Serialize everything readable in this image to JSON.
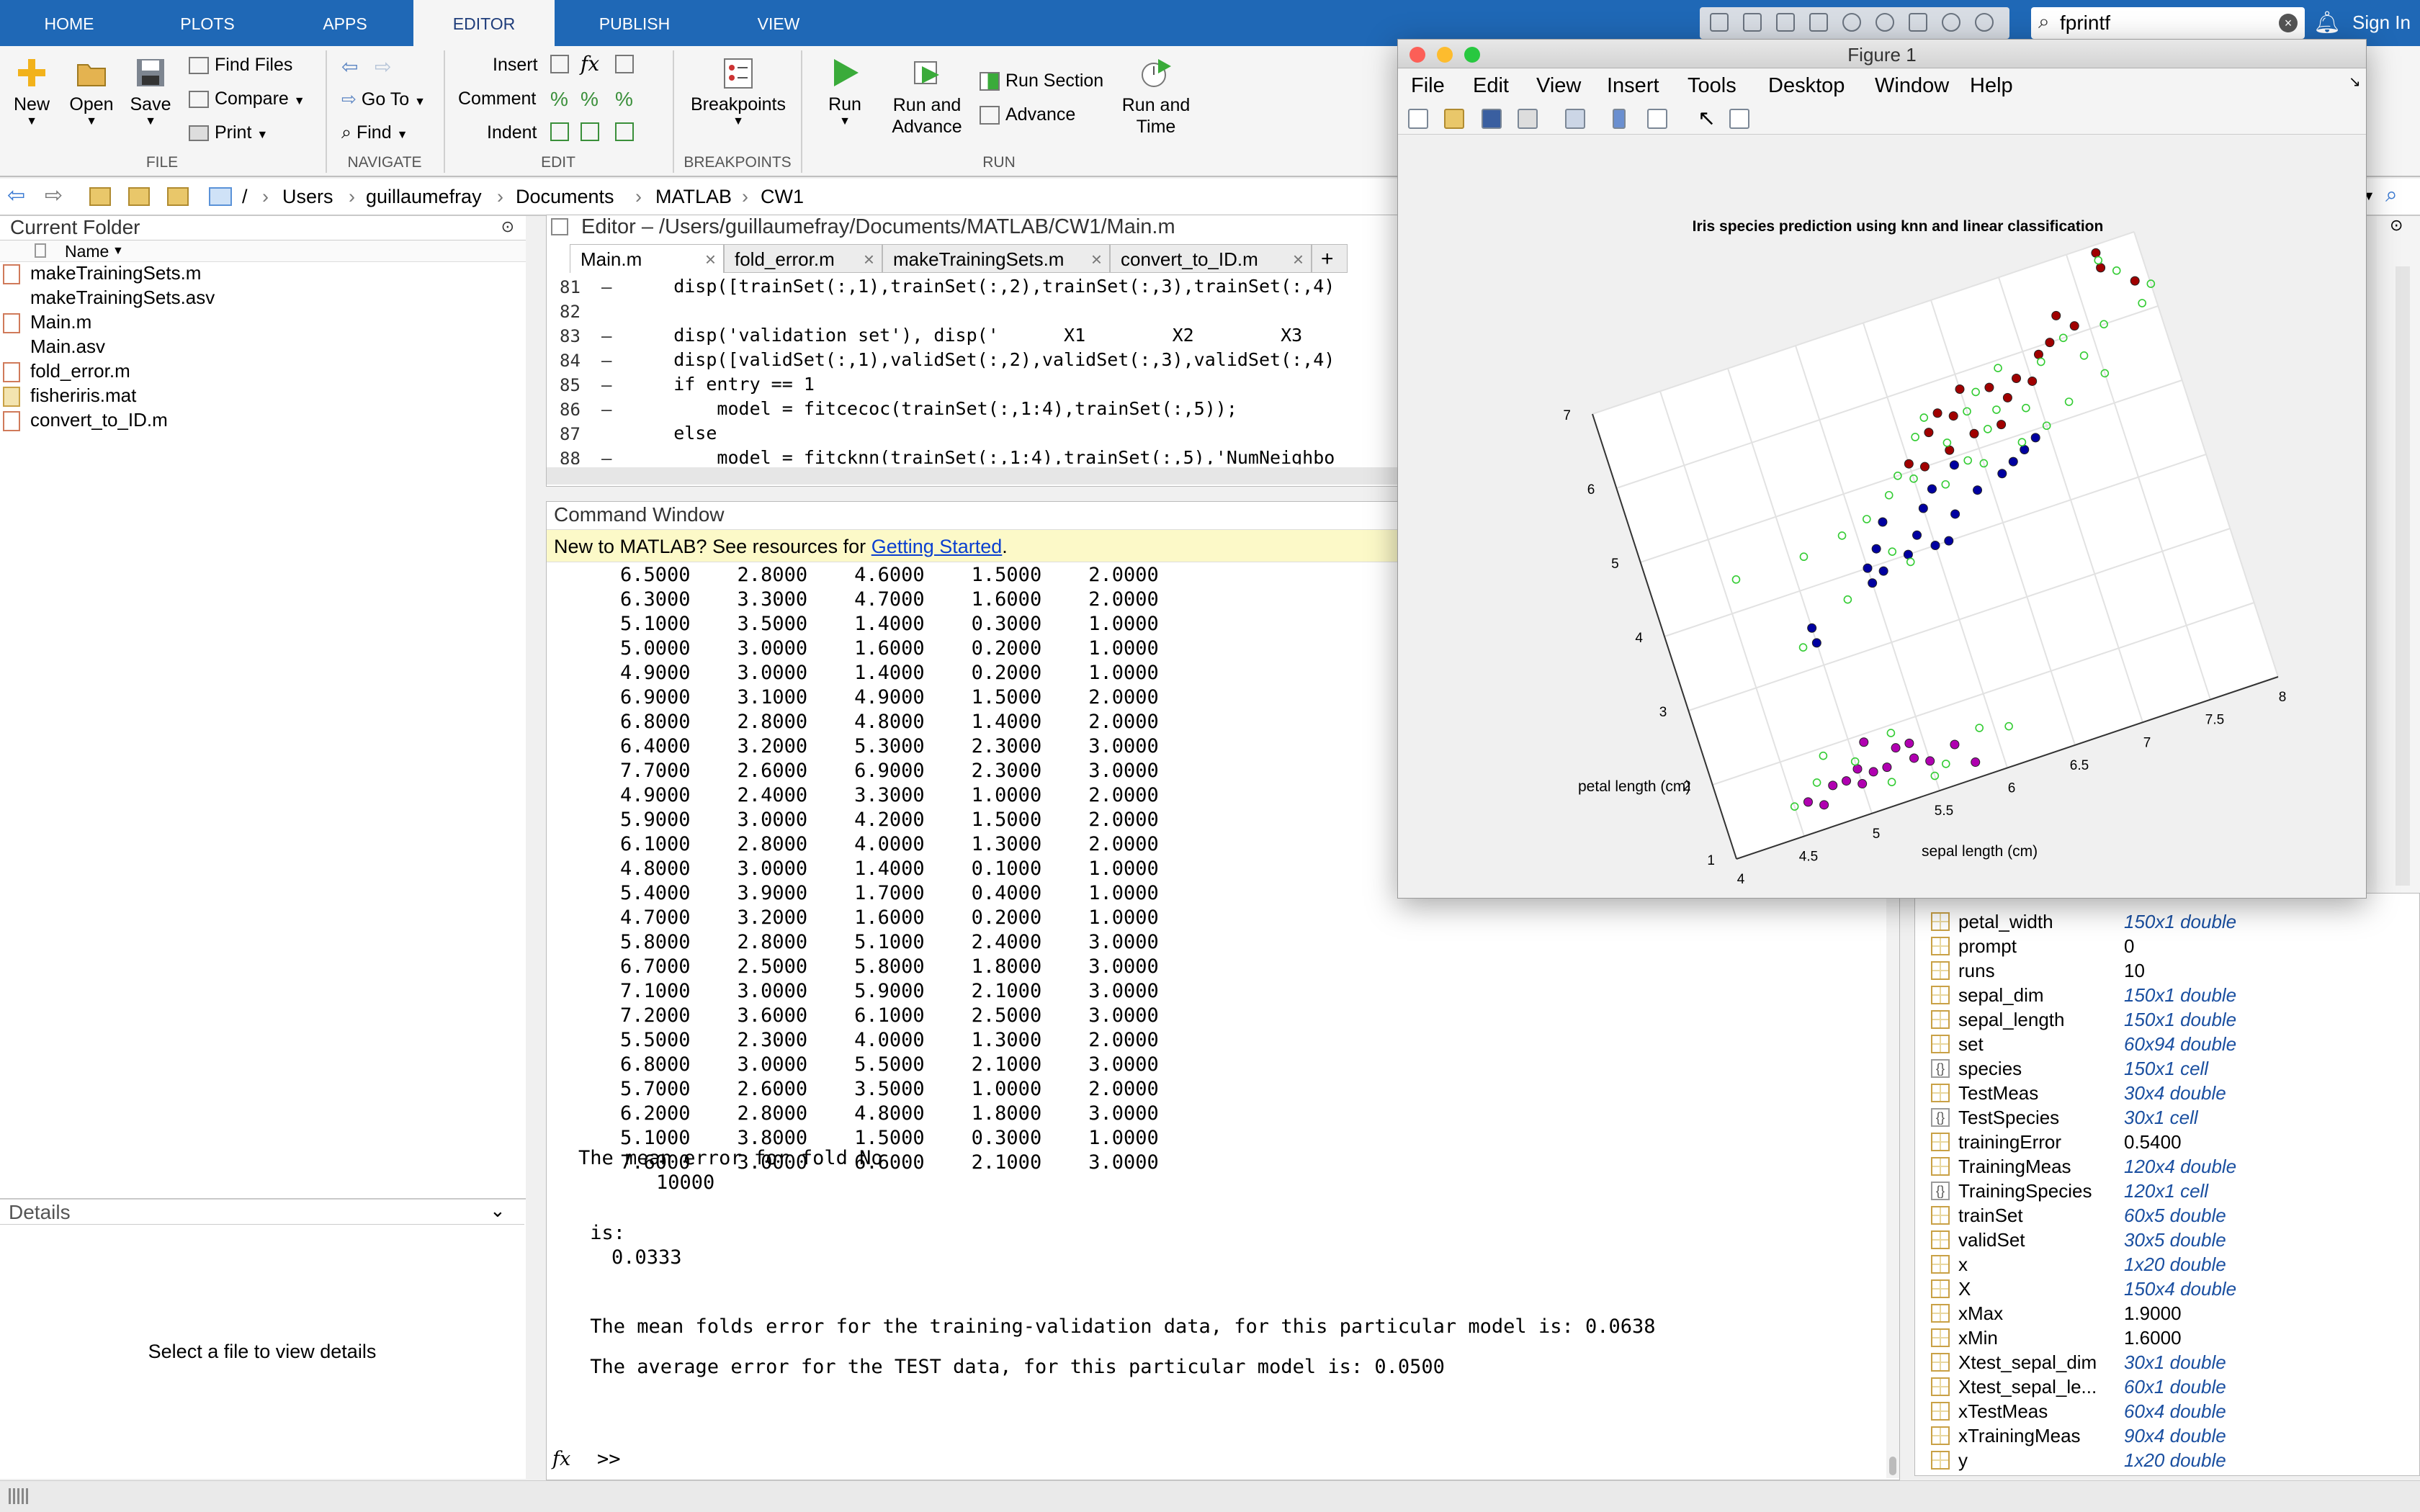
{
  "ribbon_tabs": [
    "HOME",
    "PLOTS",
    "APPS",
    "EDITOR",
    "PUBLISH",
    "VIEW"
  ],
  "active_tab": "EDITOR",
  "search": {
    "value": "fprintf"
  },
  "signin": "Sign In",
  "ribbon": {
    "file": {
      "new": "New",
      "open": "Open",
      "save": "Save",
      "find_files": "Find Files",
      "compare": "Compare",
      "print": "Print",
      "section": "FILE"
    },
    "navigate": {
      "go_to": "Go To",
      "find": "Find",
      "section": "NAVIGATE"
    },
    "edit": {
      "insert": "Insert",
      "comment": "Comment",
      "indent": "Indent",
      "section": "EDIT",
      "fx": "fx"
    },
    "breakpoints": {
      "label": "Breakpoints",
      "section": "BREAKPOINTS"
    },
    "run": {
      "run": "Run",
      "run_advance_1": "Run and",
      "run_advance_2": "Advance",
      "run_section": "Run Section",
      "advance": "Advance",
      "run_time_1": "Run and",
      "run_time_2": "Time",
      "section": "RUN"
    }
  },
  "path": {
    "root": "/",
    "parts": [
      "Users",
      "guillaumefray",
      "Documents",
      "MATLAB",
      "CW1"
    ]
  },
  "current_folder": {
    "title": "Current Folder",
    "col_name": "Name",
    "files": [
      {
        "name": "makeTrainingSets.m",
        "type": "m"
      },
      {
        "name": "makeTrainingSets.asv",
        "type": "asv"
      },
      {
        "name": "Main.m",
        "type": "m"
      },
      {
        "name": "Main.asv",
        "type": "asv"
      },
      {
        "name": "fold_error.m",
        "type": "m"
      },
      {
        "name": "fisheriris.mat",
        "type": "mat"
      },
      {
        "name": "convert_to_ID.m",
        "type": "m"
      }
    ]
  },
  "details": {
    "title": "Details",
    "message": "Select a file to view details"
  },
  "editor": {
    "title": "Editor – /Users/guillaumefray/Documents/MATLAB/CW1/Main.m",
    "tabs": [
      "Main.m",
      "fold_error.m",
      "makeTrainingSets.m",
      "convert_to_ID.m"
    ],
    "lines": [
      {
        "n": "81",
        "m": "–",
        "code": "    disp([trainSet(:,1),trainSet(:,2),trainSet(:,3),trainSet(:,4)"
      },
      {
        "n": "82",
        "m": "",
        "code": ""
      },
      {
        "n": "83",
        "m": "–",
        "code": "    disp('validation set'), disp('      X1        X2        X3"
      },
      {
        "n": "84",
        "m": "–",
        "code": "    disp([validSet(:,1),validSet(:,2),validSet(:,3),validSet(:,4)"
      },
      {
        "n": "85",
        "m": "–",
        "code": "    if entry == 1"
      },
      {
        "n": "86",
        "m": "–",
        "code": "        model = fitcecoc(trainSet(:,1:4),trainSet(:,5));"
      },
      {
        "n": "87",
        "m": "",
        "code": "    else"
      },
      {
        "n": "88",
        "m": "–",
        "code": "        model = fitcknn(trainSet(:,1:4),trainSet(:,5),'NumNeighbo"
      }
    ]
  },
  "command_window": {
    "title": "Command Window",
    "banner_text": "New to MATLAB? See resources for ",
    "banner_link": "Getting Started",
    "banner_end": ".",
    "rows": [
      "6.5000    2.8000    4.6000    1.5000    2.0000",
      "6.3000    3.3000    4.7000    1.6000    2.0000",
      "5.1000    3.5000    1.4000    0.3000    1.0000",
      "5.0000    3.0000    1.6000    0.2000    1.0000",
      "4.9000    3.0000    1.4000    0.2000    1.0000",
      "6.9000    3.1000    4.9000    1.5000    2.0000",
      "6.8000    2.8000    4.8000    1.4000    2.0000",
      "6.4000    3.2000    5.3000    2.3000    3.0000",
      "7.7000    2.6000    6.9000    2.3000    3.0000",
      "4.9000    2.4000    3.3000    1.0000    2.0000",
      "5.9000    3.0000    4.2000    1.5000    2.0000",
      "6.1000    2.8000    4.0000    1.3000    2.0000",
      "4.8000    3.0000    1.4000    0.1000    1.0000",
      "5.4000    3.9000    1.7000    0.4000    1.0000",
      "4.7000    3.2000    1.6000    0.2000    1.0000",
      "5.8000    2.8000    5.1000    2.4000    3.0000",
      "6.7000    2.5000    5.8000    1.8000    3.0000",
      "7.1000    3.0000    5.9000    2.1000    3.0000",
      "7.2000    3.6000    6.1000    2.5000    3.0000",
      "5.5000    2.3000    4.0000    1.3000    2.0000",
      "6.8000    3.0000    5.5000    2.1000    3.0000",
      "5.7000    2.6000    3.5000    1.0000    2.0000",
      "6.2000    2.8000    4.8000    1.8000    3.0000",
      "5.1000    3.8000    1.5000    0.3000    1.0000",
      "7.6000    3.0000    6.6000    2.1000    3.0000"
    ],
    "fold_line": "The mean error for fold No",
    "fold_no": "10000",
    "is_label": " is:",
    "is_value": "0.0333",
    "mean_folds": " The mean folds error for the training-validation data, for this particular model is: 0.0638",
    "avg_test": " The average error for the TEST data, for this particular model is: 0.0500",
    "prompt": ">>",
    "fx": "fx"
  },
  "workspace": {
    "rows": [
      {
        "name": "petal_width",
        "value": "150x1 double",
        "kind": "grid"
      },
      {
        "name": "prompt",
        "value": "0",
        "kind": "grid"
      },
      {
        "name": "runs",
        "value": "10",
        "kind": "grid"
      },
      {
        "name": "sepal_dim",
        "value": "150x1 double",
        "kind": "grid"
      },
      {
        "name": "sepal_length",
        "value": "150x1 double",
        "kind": "grid"
      },
      {
        "name": "set",
        "value": "60x94 double",
        "kind": "grid"
      },
      {
        "name": "species",
        "value": "150x1 cell",
        "kind": "cell"
      },
      {
        "name": "TestMeas",
        "value": "30x4 double",
        "kind": "grid"
      },
      {
        "name": "TestSpecies",
        "value": "30x1 cell",
        "kind": "cell"
      },
      {
        "name": "trainingError",
        "value": "0.5400",
        "kind": "grid"
      },
      {
        "name": "TrainingMeas",
        "value": "120x4 double",
        "kind": "grid"
      },
      {
        "name": "TrainingSpecies",
        "value": "120x1 cell",
        "kind": "cell"
      },
      {
        "name": "trainSet",
        "value": "60x5 double",
        "kind": "grid"
      },
      {
        "name": "validSet",
        "value": "30x5 double",
        "kind": "grid"
      },
      {
        "name": "x",
        "value": "1x20 double",
        "kind": "grid"
      },
      {
        "name": "X",
        "value": "150x4 double",
        "kind": "grid"
      },
      {
        "name": "xMax",
        "value": "1.9000",
        "kind": "grid"
      },
      {
        "name": "xMin",
        "value": "1.6000",
        "kind": "grid"
      },
      {
        "name": "Xtest_sepal_dim",
        "value": "30x1 double",
        "kind": "grid"
      },
      {
        "name": "Xtest_sepal_le...",
        "value": "60x1 double",
        "kind": "grid"
      },
      {
        "name": "xTestMeas",
        "value": "60x4 double",
        "kind": "grid"
      },
      {
        "name": "xTrainingMeas",
        "value": "90x4 double",
        "kind": "grid"
      },
      {
        "name": "y",
        "value": "1x20 double",
        "kind": "grid"
      }
    ]
  },
  "figure": {
    "window_title": "Figure 1",
    "menu": [
      "File",
      "Edit",
      "View",
      "Insert",
      "Tools",
      "Desktop",
      "Window",
      "Help"
    ],
    "colors": {
      "setosa": "#b000b0",
      "versicolor": "#0000a0",
      "virginica": "#a00000",
      "prediction": "#33cc33"
    }
  },
  "chart_data": {
    "type": "scatter",
    "title": "Iris species prediction using knn and linear classification",
    "xlabel": "sepal length (cm)",
    "ylabel": "petal length (cm)",
    "xlim": [
      4,
      8
    ],
    "ylim": [
      1,
      7
    ],
    "x_ticks": [
      "4",
      "4.5",
      "5",
      "5.5",
      "6",
      "6.5",
      "7",
      "7.5",
      "8"
    ],
    "y_ticks": [
      "1",
      "2",
      "3",
      "4",
      "5",
      "6",
      "7"
    ],
    "grid": true,
    "series": [
      {
        "color": "#b000b0",
        "marker": "filled-circle",
        "points": [
          [
            4.6,
            1.4
          ],
          [
            4.8,
            1.5
          ],
          [
            5.0,
            1.6
          ],
          [
            5.1,
            1.5
          ],
          [
            5.3,
            1.7
          ],
          [
            5.4,
            1.5
          ],
          [
            5.5,
            1.4
          ],
          [
            5.0,
            1.4
          ],
          [
            5.4,
            1.7
          ],
          [
            4.9,
            1.5
          ],
          [
            5.2,
            1.5
          ],
          [
            5.7,
            1.5
          ],
          [
            5.8,
            1.2
          ],
          [
            4.7,
            1.3
          ],
          [
            5.1,
            1.9
          ]
        ]
      },
      {
        "color": "#0000a0",
        "marker": "filled-circle",
        "points": [
          [
            5.0,
            3.5
          ],
          [
            5.0,
            3.3
          ],
          [
            5.5,
            4.0
          ],
          [
            5.6,
            4.2
          ],
          [
            5.7,
            4.5
          ],
          [
            5.9,
            4.2
          ],
          [
            6.0,
            4.5
          ],
          [
            6.1,
            4.7
          ],
          [
            6.2,
            4.3
          ],
          [
            6.4,
            4.5
          ],
          [
            6.6,
            4.6
          ],
          [
            6.7,
            4.7
          ],
          [
            5.8,
            4.0
          ],
          [
            5.6,
            3.9
          ],
          [
            6.1,
            4.0
          ],
          [
            6.3,
            4.9
          ],
          [
            6.8,
            4.8
          ],
          [
            5.5,
            3.8
          ],
          [
            6.0,
            4.0
          ],
          [
            6.9,
            4.9
          ]
        ]
      },
      {
        "color": "#a00000",
        "marker": "filled-circle",
        "points": [
          [
            6.3,
            5.1
          ],
          [
            6.5,
            5.2
          ],
          [
            6.7,
            5.7
          ],
          [
            6.9,
            5.7
          ],
          [
            7.2,
            6.0
          ],
          [
            7.7,
            6.7
          ],
          [
            7.9,
            6.4
          ],
          [
            6.8,
            5.5
          ],
          [
            7.1,
            5.9
          ],
          [
            7.4,
            6.1
          ],
          [
            6.4,
            5.5
          ],
          [
            6.2,
            5.4
          ],
          [
            6.5,
            5.8
          ],
          [
            7.7,
            6.9
          ],
          [
            7.3,
            6.3
          ],
          [
            6.1,
            5.0
          ],
          [
            6.0,
            5.1
          ],
          [
            6.3,
            5.6
          ],
          [
            6.7,
            5.2
          ],
          [
            7.0,
            5.6
          ]
        ]
      },
      {
        "color": "#33cc33",
        "marker": "open-circle",
        "points": [
          [
            4.5,
            1.4
          ],
          [
            4.7,
            1.6
          ],
          [
            5.0,
            1.7
          ],
          [
            5.3,
            1.9
          ],
          [
            5.6,
            1.3
          ],
          [
            5.9,
            1.6
          ],
          [
            6.1,
            1.5
          ],
          [
            4.8,
            1.9
          ],
          [
            5.5,
            1.2
          ],
          [
            5.2,
            1.3
          ],
          [
            4.9,
            3.3
          ],
          [
            5.3,
            3.7
          ],
          [
            5.8,
            3.9
          ],
          [
            5.1,
            4.4
          ],
          [
            4.6,
            4.4
          ],
          [
            5.8,
            4.8
          ],
          [
            6.0,
            4.9
          ],
          [
            6.2,
            4.7
          ],
          [
            6.5,
            4.8
          ],
          [
            6.8,
            4.9
          ],
          [
            5.7,
            4.1
          ],
          [
            6.3,
            5.2
          ],
          [
            6.6,
            5.2
          ],
          [
            6.9,
            5.3
          ],
          [
            7.0,
            5.0
          ],
          [
            7.2,
            5.2
          ],
          [
            7.5,
            5.4
          ],
          [
            6.4,
            4.9
          ],
          [
            6.2,
            5.6
          ],
          [
            6.8,
            5.9
          ],
          [
            7.3,
            6.0
          ],
          [
            7.6,
            6.0
          ],
          [
            7.9,
            6.1
          ],
          [
            8.0,
            6.3
          ],
          [
            7.1,
            5.8
          ],
          [
            6.1,
            5.4
          ],
          [
            5.6,
            4.6
          ],
          [
            5.4,
            4.5
          ],
          [
            6.5,
            5.5
          ],
          [
            7.4,
            5.7
          ],
          [
            6.7,
            5.4
          ],
          [
            5.9,
            5.0
          ],
          [
            6.6,
            5.7
          ],
          [
            7.8,
            6.6
          ],
          [
            7.7,
            6.8
          ]
        ]
      }
    ]
  }
}
